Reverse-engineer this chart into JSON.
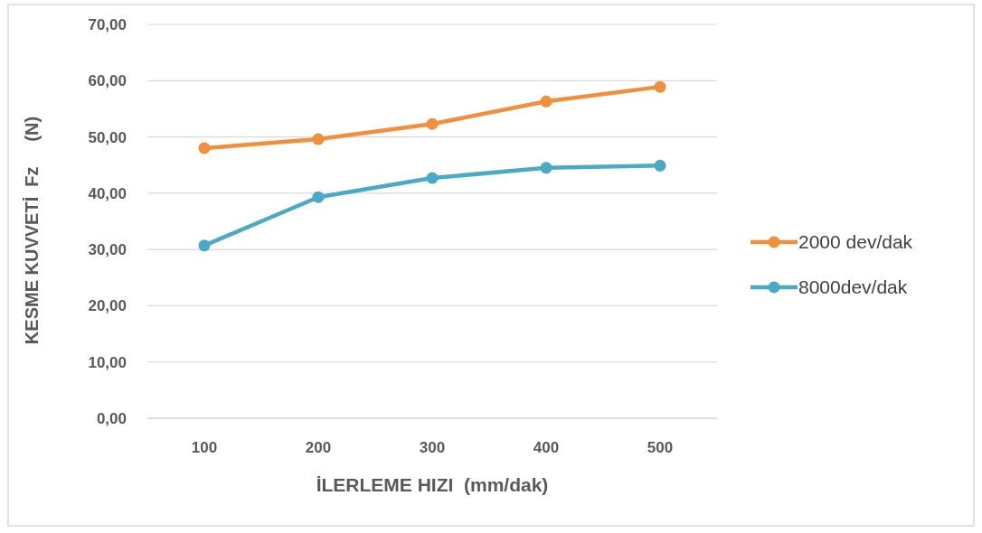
{
  "chart_data": {
    "type": "line",
    "xlabel": "İLERLEME HIZI  (mm/dak)",
    "ylabel": "KESME KUVVETİ  Fz     (N)",
    "categories": [
      "100",
      "200",
      "300",
      "400",
      "500"
    ],
    "series": [
      {
        "name": "2000 dev/dak",
        "color": "#f28e3c",
        "values": [
          48.0,
          49.6,
          52.3,
          56.3,
          58.9
        ]
      },
      {
        "name": "8000dev/dak",
        "color": "#4aa9c4",
        "values": [
          30.7,
          39.3,
          42.7,
          44.5,
          44.9
        ]
      }
    ],
    "ylim": [
      0,
      70
    ],
    "yticks": [
      {
        "value": 0,
        "label": "0,00"
      },
      {
        "value": 10,
        "label": "10,00"
      },
      {
        "value": 20,
        "label": "20,00"
      },
      {
        "value": 30,
        "label": "30,00"
      },
      {
        "value": 40,
        "label": "40,00"
      },
      {
        "value": 50,
        "label": "50,00"
      },
      {
        "value": 60,
        "label": "60,00"
      },
      {
        "value": 70,
        "label": "70,00"
      }
    ],
    "grid": "y",
    "legend": "right",
    "marker": "circle",
    "line_style": "solid"
  }
}
